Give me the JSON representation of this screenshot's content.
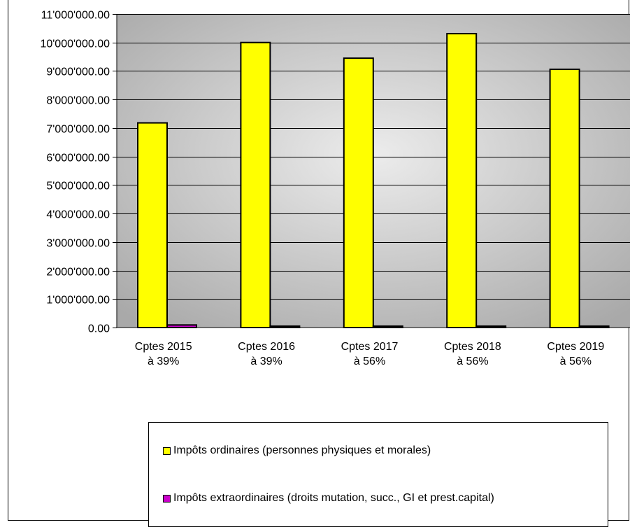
{
  "chart_data": {
    "type": "bar",
    "categories": [
      [
        "Cptes 2015",
        "à 39%"
      ],
      [
        "Cptes 2016",
        "à 39%"
      ],
      [
        "Cptes 2017",
        "à 56%"
      ],
      [
        "Cptes 2018",
        "à 56%"
      ],
      [
        "Cptes 2019",
        "à 56%"
      ]
    ],
    "series": [
      {
        "name": "Impôts ordinaires (personnes physiques et morales)",
        "color": "#ffff00",
        "values": [
          7180000,
          10000000,
          9450000,
          10310000,
          9060000
        ]
      },
      {
        "name": "Impôts extraordinaires (droits mutation, succ., GI et prest.capital)",
        "color": "#cc00cc",
        "values": [
          90000,
          25000,
          35000,
          20000,
          30000
        ]
      }
    ],
    "ylim": [
      0,
      11000000
    ],
    "yticks": [
      0,
      1000000,
      2000000,
      3000000,
      4000000,
      5000000,
      6000000,
      7000000,
      8000000,
      9000000,
      10000000,
      11000000
    ],
    "ytick_labels": [
      "0.00",
      "1'000'000.00",
      "2'000'000.00",
      "3'000'000.00",
      "4'000'000.00",
      "5'000'000.00",
      "6'000'000.00",
      "7'000'000.00",
      "8'000'000.00",
      "9'000'000.00",
      "10'000'000.00",
      "11'000'000.00"
    ],
    "grid": true,
    "legend_position": "bottom"
  }
}
